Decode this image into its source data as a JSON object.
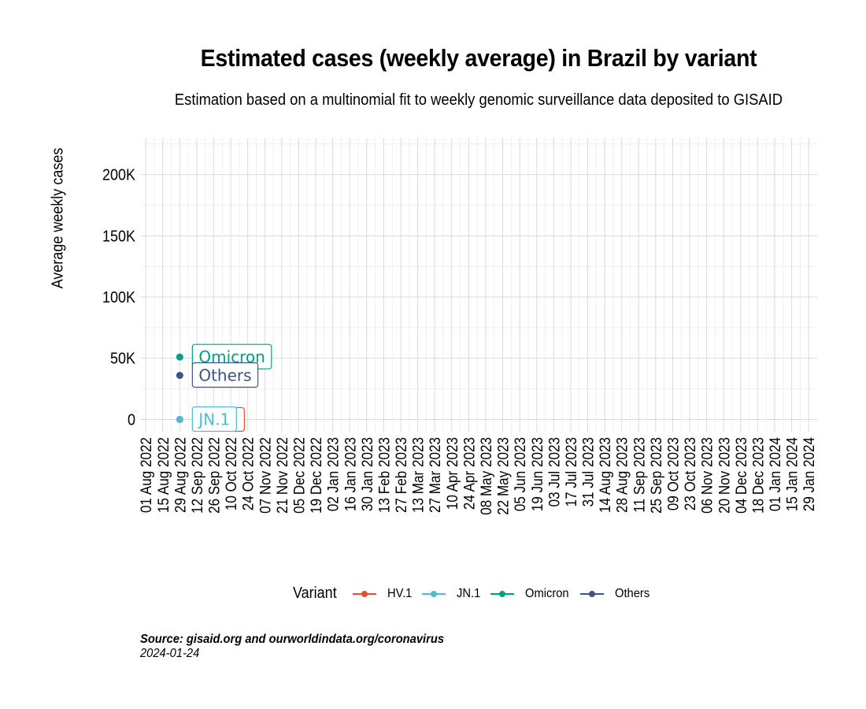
{
  "chart_data": {
    "type": "line",
    "title": "Estimated cases (weekly average) in Brazil by variant",
    "subtitle": "Estimation based on a multinomial fit to weekly genomic surveillance data deposited to GISAID",
    "xlabel": "",
    "ylabel": "Average weekly cases",
    "ylim": [
      -10000,
      230000
    ],
    "yticks": [
      0,
      50000,
      100000,
      150000,
      200000
    ],
    "ytick_labels": [
      "0",
      "50K",
      "100K",
      "150K",
      "200K"
    ],
    "xlim": [
      "2022-07-28",
      "2024-02-05"
    ],
    "xtick_labels": [
      "01 Aug 2022",
      "15 Aug 2022",
      "29 Aug 2022",
      "12 Sep 2022",
      "26 Sep 2022",
      "10 Oct 2022",
      "24 Oct 2022",
      "07 Nov 2022",
      "21 Nov 2022",
      "05 Dec 2022",
      "19 Dec 2022",
      "02 Jan 2023",
      "16 Jan 2023",
      "30 Jan 2023",
      "13 Feb 2023",
      "27 Feb 2023",
      "13 Mar 2023",
      "27 Mar 2023",
      "10 Apr 2023",
      "24 Apr 2023",
      "08 May 2023",
      "22 May 2023",
      "05 Jun 2023",
      "19 Jun 2023",
      "03 Jul 2023",
      "17 Jul 2023",
      "31 Jul 2023",
      "14 Aug 2023",
      "28 Aug 2023",
      "11 Sep 2023",
      "25 Sep 2023",
      "09 Oct 2023",
      "23 Oct 2023",
      "06 Nov 2023",
      "20 Nov 2023",
      "04 Dec 2023",
      "18 Dec 2023",
      "01 Jan 2024",
      "15 Jan 2024",
      "29 Jan 2024"
    ],
    "grid": true,
    "legend_position": "bottom",
    "legend_title": "Variant",
    "series": [
      {
        "name": "HV.1",
        "color": "#e64b35",
        "points": [
          {
            "x": "2022-08-29",
            "y": 0
          }
        ],
        "end_label": ""
      },
      {
        "name": "JN.1",
        "color": "#4dbbd5",
        "points": [
          {
            "x": "2022-08-29",
            "y": 0
          }
        ],
        "end_label": "JN.1"
      },
      {
        "name": "Omicron",
        "color": "#00a087",
        "points": [
          {
            "x": "2022-08-29",
            "y": 51000
          }
        ],
        "end_label": "Omicron"
      },
      {
        "name": "Others",
        "color": "#3c5488",
        "points": [
          {
            "x": "2022-08-29",
            "y": 36000
          }
        ],
        "end_label": "Others"
      }
    ],
    "source": "Source: gisaid.org and ourworldindata.org/coronavirus",
    "date": "2024-01-24"
  }
}
